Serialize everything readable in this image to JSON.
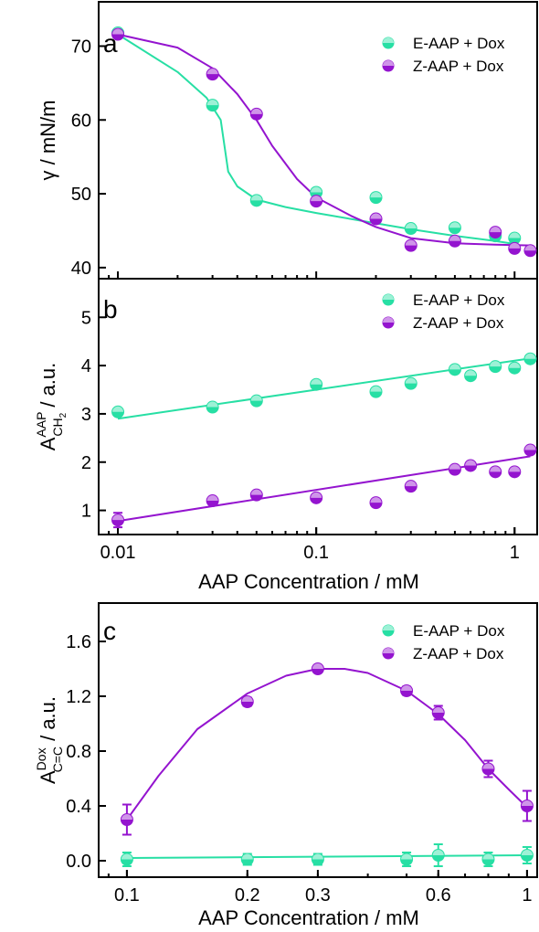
{
  "colors": {
    "E": "#27dfa4",
    "Z": "#9414cf"
  },
  "x_axis_label": "AAP Concentration / mM",
  "legend": {
    "E": "E-AAP + Dox",
    "Z": "Z-AAP + Dox"
  },
  "chart_data": [
    {
      "panel": "a",
      "type": "scatter",
      "xscale": "log",
      "xlim": [
        0.008,
        1.3
      ],
      "ylim": [
        38.5,
        76
      ],
      "yticks": [
        "40",
        "50",
        "60",
        "70"
      ],
      "xticks": [],
      "ylabel": "γ / mN/m",
      "legend_position": "top-right",
      "series": [
        {
          "name": "E-AAP + Dox",
          "color": "E",
          "x": [
            0.01,
            0.03,
            0.05,
            0.1,
            0.2,
            0.3,
            0.5,
            0.8,
            1.0
          ],
          "y": [
            71.8,
            62.0,
            49.1,
            50.2,
            49.5,
            45.3,
            45.4,
            44.3,
            44.0
          ],
          "fit_x": [
            0.01,
            0.02,
            0.028,
            0.033,
            0.036,
            0.04,
            0.05,
            0.07,
            0.1,
            0.2,
            0.3,
            0.5,
            0.8,
            1.0
          ],
          "fit_y": [
            71.6,
            66.5,
            63.0,
            60.0,
            53.0,
            51.0,
            49.2,
            48.2,
            47.4,
            46.0,
            45.2,
            44.3,
            43.6,
            43.2
          ]
        },
        {
          "name": "Z-AAP + Dox",
          "color": "Z",
          "x": [
            0.01,
            0.03,
            0.05,
            0.1,
            0.2,
            0.3,
            0.5,
            0.8,
            1.0,
            1.2
          ],
          "y": [
            71.6,
            66.2,
            60.8,
            49.0,
            46.6,
            43.0,
            43.6,
            44.8,
            42.6,
            42.3
          ],
          "fit_x": [
            0.01,
            0.02,
            0.03,
            0.04,
            0.05,
            0.06,
            0.08,
            0.1,
            0.15,
            0.2,
            0.3,
            0.5,
            0.8,
            1.2
          ],
          "fit_y": [
            71.6,
            69.8,
            67.0,
            63.5,
            60.0,
            56.5,
            52.0,
            49.5,
            47.0,
            45.5,
            44.0,
            43.3,
            43.1,
            43.0
          ]
        }
      ]
    },
    {
      "panel": "b",
      "type": "scatter",
      "xscale": "log",
      "xlim": [
        0.008,
        1.3
      ],
      "ylim": [
        0.5,
        5.8
      ],
      "yticks": [
        "1",
        "2",
        "3",
        "4",
        "5"
      ],
      "xticks": [
        "0.01",
        "0.1",
        "1"
      ],
      "xtick_values": [
        0.01,
        0.1,
        1
      ],
      "ylabel_main": "A",
      "ylabel_sup": "AAP",
      "ylabel_sub": "CH",
      "ylabel_sub2": "2",
      "ylabel_rest": " / a.u.",
      "legend_position": "top-right",
      "series": [
        {
          "name": "E-AAP + Dox",
          "color": "E",
          "x": [
            0.01,
            0.03,
            0.05,
            0.1,
            0.2,
            0.3,
            0.5,
            0.6,
            0.8,
            1.0,
            1.2
          ],
          "y": [
            3.04,
            3.14,
            3.27,
            3.61,
            3.46,
            3.63,
            3.92,
            3.79,
            3.98,
            3.95,
            4.14
          ],
          "err": [
            0,
            0,
            0,
            0,
            0,
            0,
            0,
            0,
            0,
            0,
            0
          ],
          "fit_x": [
            0.01,
            1.2
          ],
          "fit_y": [
            2.9,
            4.15
          ]
        },
        {
          "name": "Z-AAP + Dox",
          "color": "Z",
          "x": [
            0.01,
            0.03,
            0.05,
            0.1,
            0.2,
            0.3,
            0.5,
            0.6,
            0.8,
            1.0,
            1.2
          ],
          "y": [
            0.8,
            1.2,
            1.32,
            1.26,
            1.16,
            1.5,
            1.85,
            1.93,
            1.8,
            1.8,
            2.25
          ],
          "err": [
            0.15,
            0,
            0,
            0,
            0,
            0,
            0,
            0,
            0,
            0,
            0
          ],
          "fit_x": [
            0.01,
            1.2
          ],
          "fit_y": [
            0.78,
            2.12
          ]
        }
      ]
    },
    {
      "panel": "c",
      "type": "scatter",
      "xscale": "log",
      "xlim": [
        0.085,
        1.06
      ],
      "ylim": [
        -0.12,
        1.88
      ],
      "yticks": [
        "0.0",
        "0.4",
        "0.8",
        "1.2",
        "1.6"
      ],
      "xticks": [
        "0.1",
        "0.2",
        "0.3",
        "0.6",
        "1"
      ],
      "xtick_values": [
        0.1,
        0.2,
        0.3,
        0.6,
        1.0
      ],
      "ylabel_main": "A",
      "ylabel_sup": "Dox",
      "ylabel_sub": "C=C",
      "ylabel_rest": " / a.u.",
      "legend_position": "top-right",
      "series": [
        {
          "name": "E-AAP + Dox",
          "color": "E",
          "x": [
            0.1,
            0.2,
            0.3,
            0.5,
            0.6,
            0.8,
            1.0
          ],
          "y": [
            0.01,
            0.01,
            0.01,
            0.01,
            0.04,
            0.01,
            0.04
          ],
          "err": [
            0.05,
            0.04,
            0.04,
            0.05,
            0.08,
            0.05,
            0.06
          ],
          "fit_x": [
            0.1,
            1.0
          ],
          "fit_y": [
            0.02,
            0.04
          ]
        },
        {
          "name": "Z-AAP + Dox",
          "color": "Z",
          "x": [
            0.1,
            0.2,
            0.3,
            0.5,
            0.6,
            0.8,
            1.0
          ],
          "y": [
            0.3,
            1.16,
            1.4,
            1.24,
            1.08,
            0.67,
            0.4
          ],
          "err": [
            0.11,
            0.03,
            0.02,
            0.03,
            0.05,
            0.06,
            0.11
          ],
          "fit_x": [
            0.1,
            0.12,
            0.15,
            0.2,
            0.25,
            0.3,
            0.35,
            0.4,
            0.5,
            0.6,
            0.7,
            0.8,
            0.9,
            1.0
          ],
          "fit_y": [
            0.3,
            0.62,
            0.96,
            1.22,
            1.35,
            1.4,
            1.4,
            1.37,
            1.24,
            1.07,
            0.88,
            0.67,
            0.52,
            0.39
          ]
        }
      ]
    }
  ]
}
